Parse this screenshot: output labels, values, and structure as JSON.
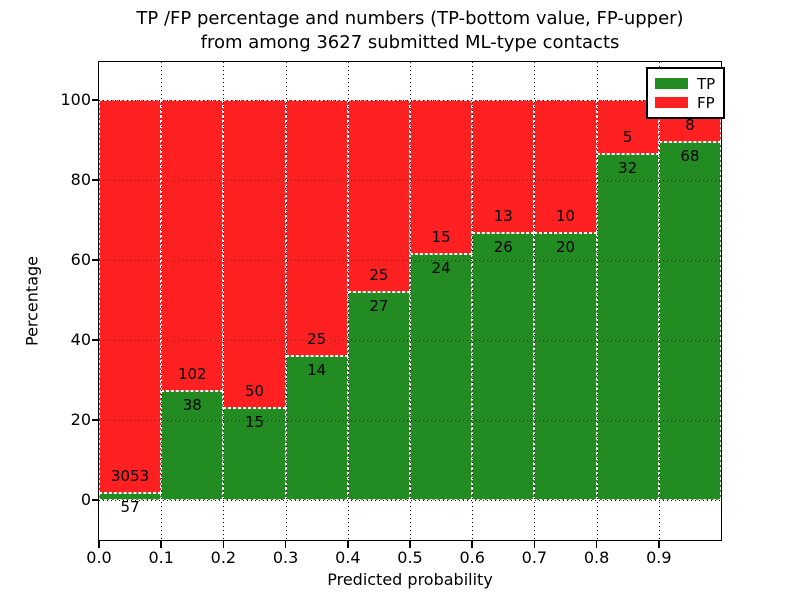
{
  "title_line1": "TP /FP percentage and numbers (TP-bottom value, FP-upper)",
  "title_line2": "from among 3627 submitted ML-type contacts",
  "total_contacts": 3627,
  "chart_data": {
    "type": "bar",
    "stacked": true,
    "normalized": "each bar scaled to 100%, numeric labels show raw counts (TP bottom, FP upper)",
    "categories": [
      "0.0-0.1",
      "0.1-0.2",
      "0.2-0.3",
      "0.3-0.4",
      "0.4-0.5",
      "0.5-0.6",
      "0.6-0.7",
      "0.7-0.8",
      "0.8-0.9",
      "0.9-1.0"
    ],
    "x_bin_starts": [
      0.0,
      0.1,
      0.2,
      0.3,
      0.4,
      0.5,
      0.6,
      0.7,
      0.8,
      0.9
    ],
    "bin_width": 0.1,
    "series": [
      {
        "name": "TP",
        "color": "#228B22",
        "values": [
          57,
          38,
          15,
          14,
          27,
          24,
          26,
          20,
          32,
          68
        ]
      },
      {
        "name": "FP",
        "color": "#FF2121",
        "values": [
          3053,
          102,
          50,
          25,
          25,
          15,
          13,
          10,
          5,
          8
        ]
      }
    ],
    "title": "TP /FP percentage and numbers (TP-bottom value, FP-upper) from among 3627 submitted ML-type contacts",
    "xlabel": "Predicted probability",
    "ylabel": "Percentage",
    "xlim": [
      0.0,
      1.0
    ],
    "ylim": [
      -10,
      110
    ],
    "yticks": [
      0,
      20,
      40,
      60,
      80,
      100
    ],
    "yticklabels": [
      "0",
      "20",
      "40",
      "60",
      "80",
      "100"
    ],
    "xticks": [
      0.0,
      0.1,
      0.2,
      0.3,
      0.4,
      0.5,
      0.6,
      0.7,
      0.8,
      0.9
    ],
    "xticklabels": [
      "0.0",
      "0.1",
      "0.2",
      "0.3",
      "0.4",
      "0.5",
      "0.6",
      "0.7",
      "0.8",
      "0.9"
    ],
    "grid": true,
    "grid_style": "dotted-black",
    "bar_edge_style": "dashed-white",
    "legend_position": "upper right"
  },
  "legend": {
    "items": [
      {
        "label": "TP",
        "color": "#228B22"
      },
      {
        "label": "FP",
        "color": "#FF2121"
      }
    ]
  }
}
